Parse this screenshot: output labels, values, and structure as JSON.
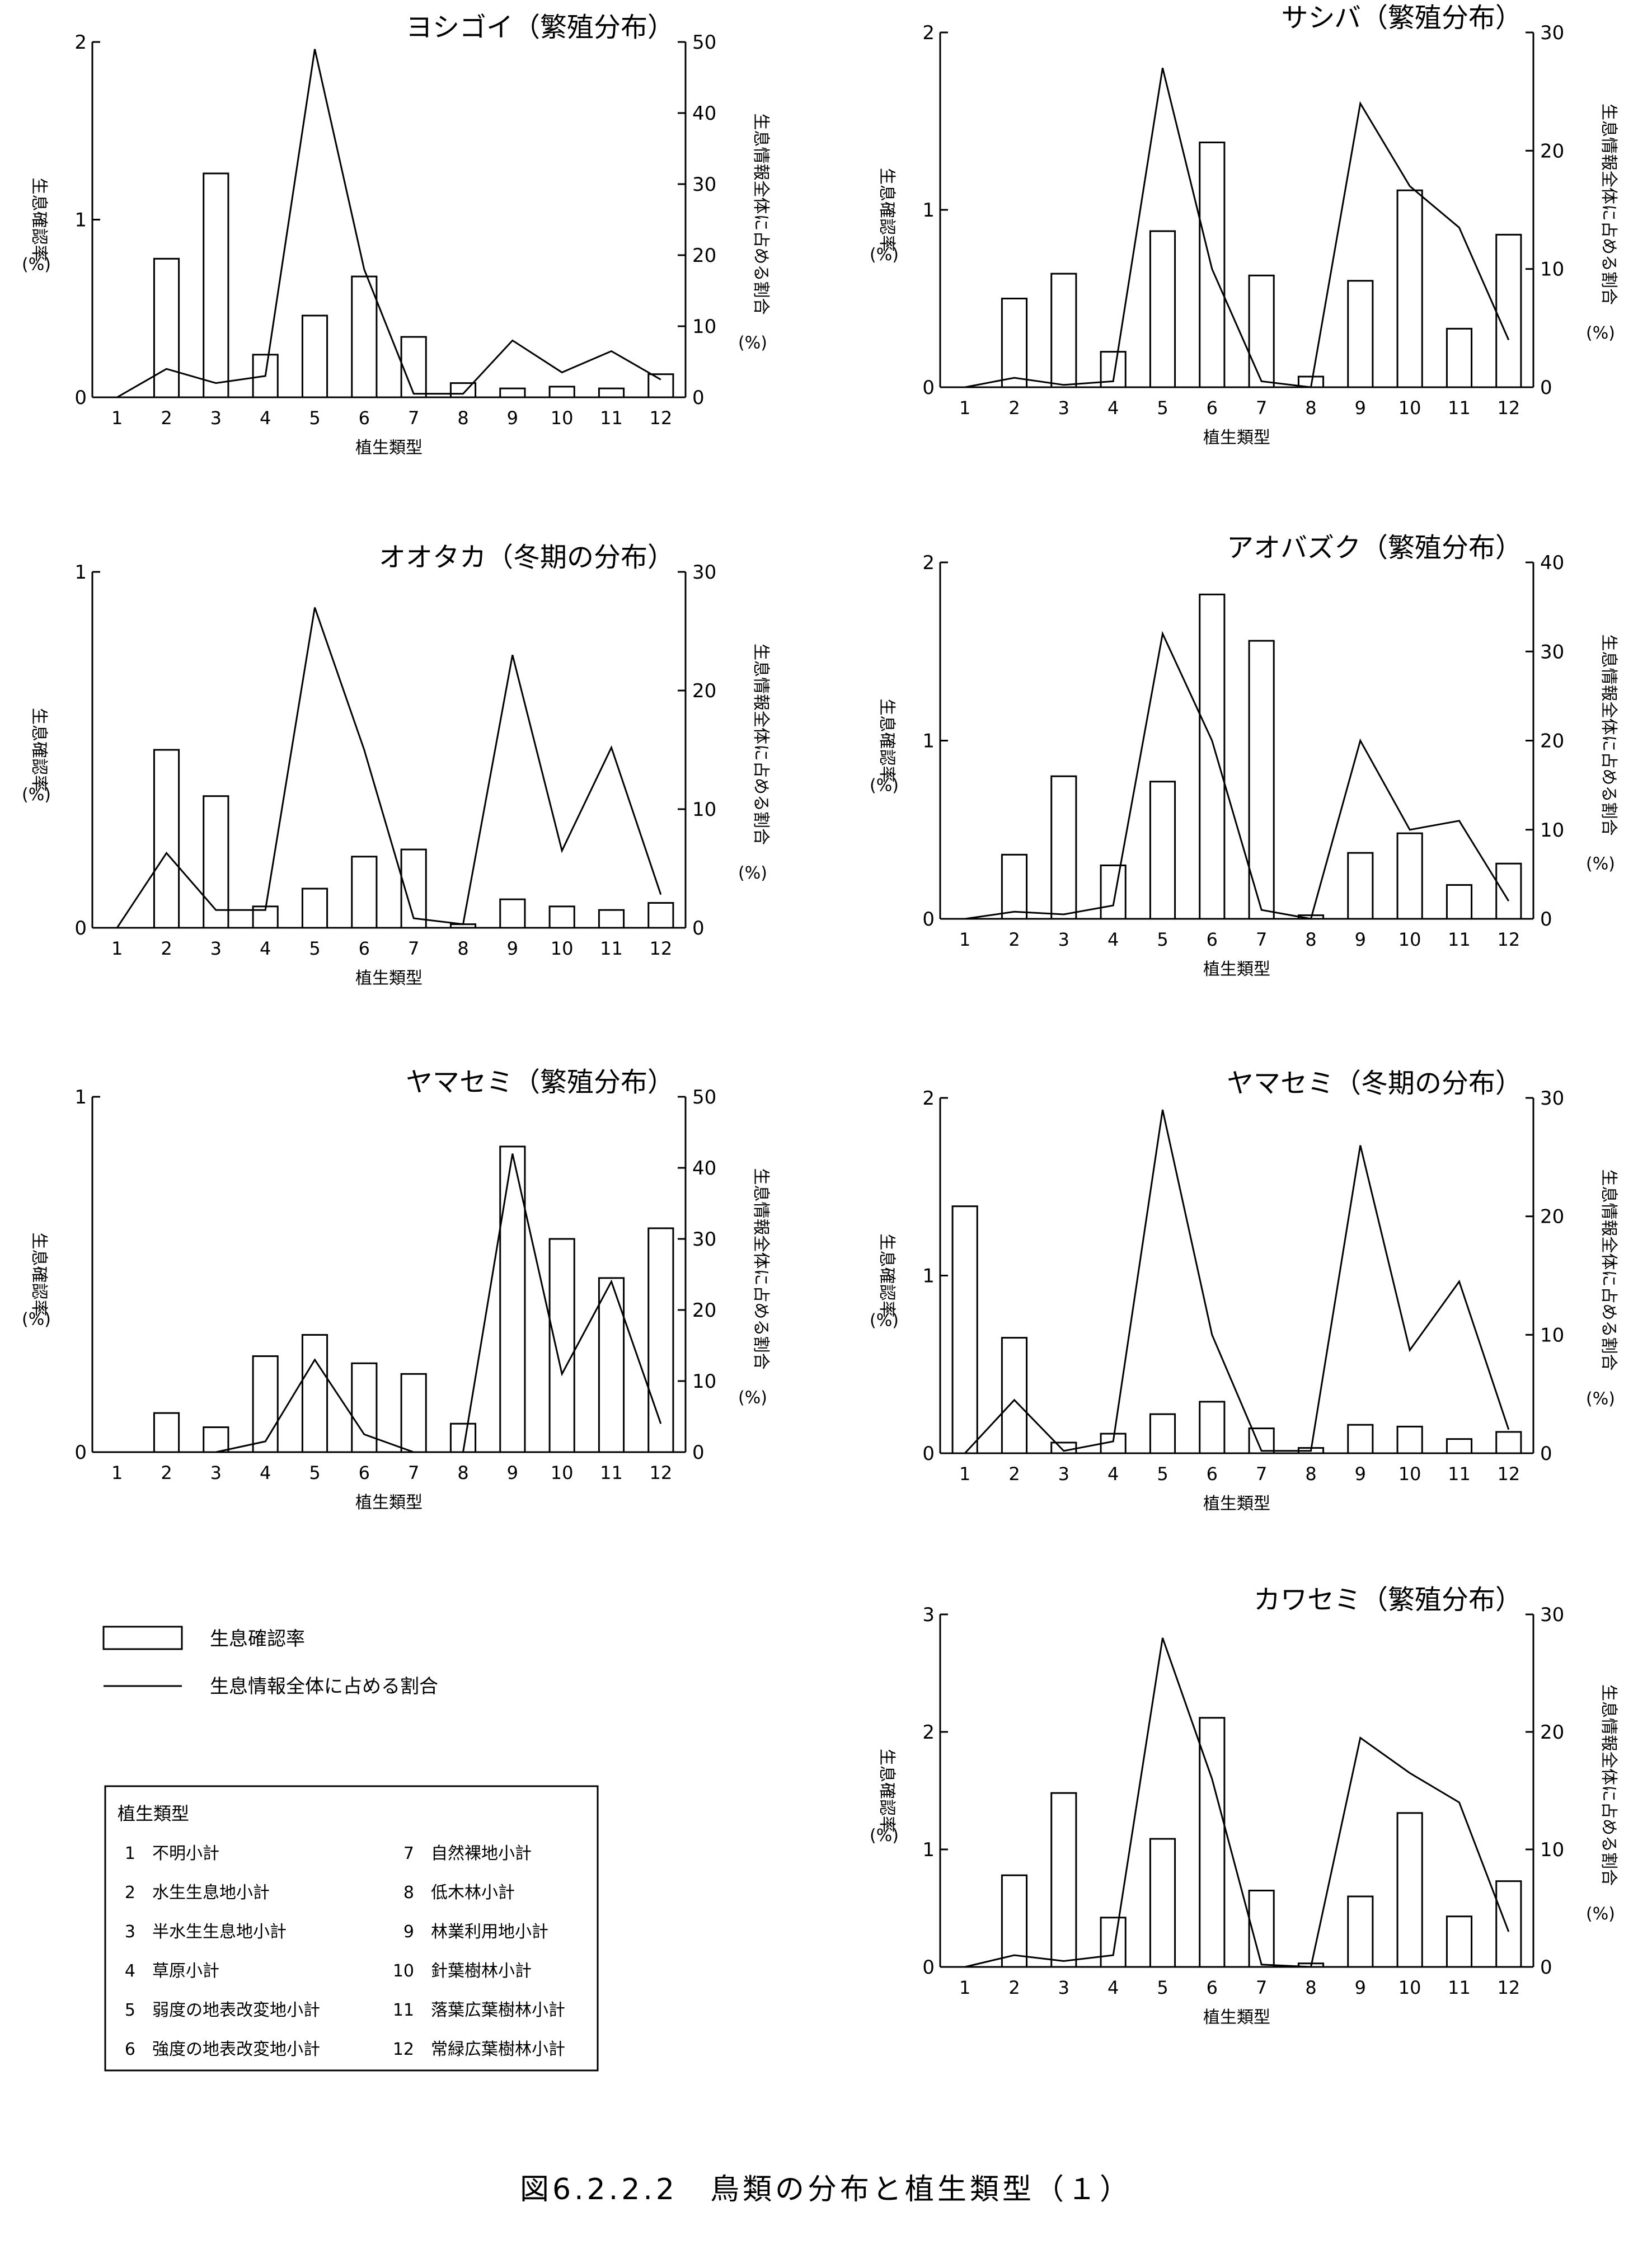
{
  "caption": "図6.2.2.2　鳥類の分布と植生類型（１）",
  "axis_text": {
    "xlabel": "植生類型",
    "ylabel_left_main": "生息確認率",
    "ylabel_left_unit": "(%)",
    "ylabel_right_main": "生息情報全体に占める割合",
    "ylabel_right_unit": "(%)"
  },
  "legend": {
    "bar_label": "生息確認率",
    "line_label": "生息情報全体に占める割合"
  },
  "vegetation_table": {
    "title": "植生類型",
    "items": [
      {
        "no": "1",
        "label": "不明小計"
      },
      {
        "no": "2",
        "label": "水生生息地小計"
      },
      {
        "no": "3",
        "label": "半水生生息地小計"
      },
      {
        "no": "4",
        "label": "草原小計"
      },
      {
        "no": "5",
        "label": "弱度の地表改変地小計"
      },
      {
        "no": "6",
        "label": "強度の地表改変地小計"
      },
      {
        "no": "7",
        "label": "自然裸地小計"
      },
      {
        "no": "8",
        "label": "低木林小計"
      },
      {
        "no": "9",
        "label": "林業利用地小計"
      },
      {
        "no": "10",
        "label": "針葉樹林小計"
      },
      {
        "no": "11",
        "label": "落葉広葉樹林小計"
      },
      {
        "no": "12",
        "label": "常緑広葉樹林小計"
      }
    ]
  },
  "chart_data": [
    {
      "type": "bar",
      "title": "ヨシゴイ（繁殖分布）",
      "categories": [
        "1",
        "2",
        "3",
        "4",
        "5",
        "6",
        "7",
        "8",
        "9",
        "10",
        "11",
        "12"
      ],
      "series": [
        {
          "name": "生息確認率",
          "kind": "bar",
          "axis": "left",
          "values": [
            0,
            0.78,
            1.26,
            0.24,
            0.46,
            0.68,
            0.34,
            0.08,
            0.05,
            0.06,
            0.05,
            0.13
          ]
        },
        {
          "name": "生息情報全体に占める割合",
          "kind": "line",
          "axis": "right",
          "values": [
            0,
            4,
            2,
            3,
            49,
            18,
            0.5,
            0.5,
            8,
            3.5,
            6.5,
            2.5
          ]
        }
      ],
      "ylim_left": [
        0,
        2
      ],
      "yticks_left": [
        0,
        1,
        2
      ],
      "ylim_right": [
        0,
        50
      ],
      "yticks_right": [
        0,
        10,
        20,
        30,
        40,
        50
      ]
    },
    {
      "type": "bar",
      "title": "サシバ（繁殖分布）",
      "categories": [
        "1",
        "2",
        "3",
        "4",
        "5",
        "6",
        "7",
        "8",
        "9",
        "10",
        "11",
        "12"
      ],
      "series": [
        {
          "name": "生息確認率",
          "kind": "bar",
          "axis": "left",
          "values": [
            0,
            0.5,
            0.64,
            0.2,
            0.88,
            1.38,
            0.63,
            0.06,
            0.6,
            1.11,
            0.33,
            0.86
          ]
        },
        {
          "name": "生息情報全体に占める割合",
          "kind": "line",
          "axis": "right",
          "values": [
            0,
            0.8,
            0.2,
            0.5,
            27,
            10,
            0.5,
            0,
            24,
            17,
            13.5,
            4
          ]
        }
      ],
      "ylim_left": [
        0,
        2
      ],
      "yticks_left": [
        0,
        1,
        2
      ],
      "ylim_right": [
        0,
        30
      ],
      "yticks_right": [
        0,
        10,
        20,
        30
      ]
    },
    {
      "type": "bar",
      "title": "オオタカ（冬期の分布）",
      "categories": [
        "1",
        "2",
        "3",
        "4",
        "5",
        "6",
        "7",
        "8",
        "9",
        "10",
        "11",
        "12"
      ],
      "series": [
        {
          "name": "生息確認率",
          "kind": "bar",
          "axis": "left",
          "values": [
            0,
            0.5,
            0.37,
            0.06,
            0.11,
            0.2,
            0.22,
            0.01,
            0.08,
            0.06,
            0.05,
            0.07
          ]
        },
        {
          "name": "生息情報全体に占める割合",
          "kind": "line",
          "axis": "right",
          "values": [
            0,
            6.3,
            1.5,
            1.5,
            27,
            15,
            0.8,
            0.3,
            23,
            6.5,
            15.2,
            2.8
          ]
        }
      ],
      "ylim_left": [
        0,
        1
      ],
      "yticks_left": [
        0,
        1
      ],
      "ylim_right": [
        0,
        30
      ],
      "yticks_right": [
        0,
        10,
        20,
        30
      ]
    },
    {
      "type": "bar",
      "title": "アオバズク（繁殖分布）",
      "categories": [
        "1",
        "2",
        "3",
        "4",
        "5",
        "6",
        "7",
        "8",
        "9",
        "10",
        "11",
        "12"
      ],
      "series": [
        {
          "name": "生息確認率",
          "kind": "bar",
          "axis": "left",
          "values": [
            0,
            0.36,
            0.8,
            0.3,
            0.77,
            1.82,
            1.56,
            0.02,
            0.37,
            0.48,
            0.19,
            0.31
          ]
        },
        {
          "name": "生息情報全体に占める割合",
          "kind": "line",
          "axis": "right",
          "values": [
            0,
            0.8,
            0.5,
            1.5,
            32,
            20,
            1,
            0,
            20,
            10,
            11,
            2
          ]
        }
      ],
      "ylim_left": [
        0,
        2
      ],
      "yticks_left": [
        0,
        1,
        2
      ],
      "ylim_right": [
        0,
        40
      ],
      "yticks_right": [
        0,
        10,
        20,
        30,
        40
      ]
    },
    {
      "type": "bar",
      "title": "ヤマセミ（繁殖分布）",
      "categories": [
        "1",
        "2",
        "3",
        "4",
        "5",
        "6",
        "7",
        "8",
        "9",
        "10",
        "11",
        "12"
      ],
      "series": [
        {
          "name": "生息確認率",
          "kind": "bar",
          "axis": "left",
          "values": [
            0,
            0.11,
            0.07,
            0.27,
            0.33,
            0.25,
            0.22,
            0.08,
            0.86,
            0.6,
            0.49,
            0.63
          ]
        },
        {
          "name": "生息情報全体に占める割合",
          "kind": "line",
          "axis": "right",
          "values": [
            0,
            0,
            0,
            1.5,
            13,
            2.5,
            0,
            0,
            42,
            11,
            24,
            4
          ]
        }
      ],
      "ylim_left": [
        0,
        1
      ],
      "yticks_left": [
        0,
        1
      ],
      "ylim_right": [
        0,
        50
      ],
      "yticks_right": [
        0,
        10,
        20,
        30,
        40,
        50
      ]
    },
    {
      "type": "bar",
      "title": "ヤマセミ（冬期の分布）",
      "categories": [
        "1",
        "2",
        "3",
        "4",
        "5",
        "6",
        "7",
        "8",
        "9",
        "10",
        "11",
        "12"
      ],
      "series": [
        {
          "name": "生息確認率",
          "kind": "bar",
          "axis": "left",
          "values": [
            1.39,
            0.65,
            0.06,
            0.11,
            0.22,
            0.29,
            0.14,
            0.03,
            0.16,
            0.15,
            0.08,
            0.12
          ]
        },
        {
          "name": "生息情報全体に占める割合",
          "kind": "line",
          "axis": "right",
          "values": [
            0,
            4.5,
            0.2,
            1,
            29,
            10,
            0.2,
            0.2,
            26,
            8.7,
            14.5,
            2
          ]
        }
      ],
      "ylim_left": [
        0,
        2
      ],
      "yticks_left": [
        0,
        1,
        2
      ],
      "ylim_right": [
        0,
        30
      ],
      "yticks_right": [
        0,
        10,
        20,
        30
      ]
    },
    {
      "type": "bar",
      "title": "カワセミ（繁殖分布）",
      "categories": [
        "1",
        "2",
        "3",
        "4",
        "5",
        "6",
        "7",
        "8",
        "9",
        "10",
        "11",
        "12"
      ],
      "series": [
        {
          "name": "生息確認率",
          "kind": "bar",
          "axis": "left",
          "values": [
            0,
            0.78,
            1.48,
            0.42,
            1.09,
            2.12,
            0.65,
            0.03,
            0.6,
            1.31,
            0.43,
            0.73
          ]
        },
        {
          "name": "生息情報全体に占める割合",
          "kind": "line",
          "axis": "right",
          "values": [
            0,
            1,
            0.5,
            1,
            28,
            16,
            0.2,
            0,
            19.5,
            16.5,
            14,
            3
          ]
        }
      ],
      "ylim_left": [
        0,
        3
      ],
      "yticks_left": [
        0,
        1,
        2,
        3
      ],
      "ylim_right": [
        0,
        30
      ],
      "yticks_right": [
        0,
        10,
        20,
        30
      ]
    }
  ]
}
